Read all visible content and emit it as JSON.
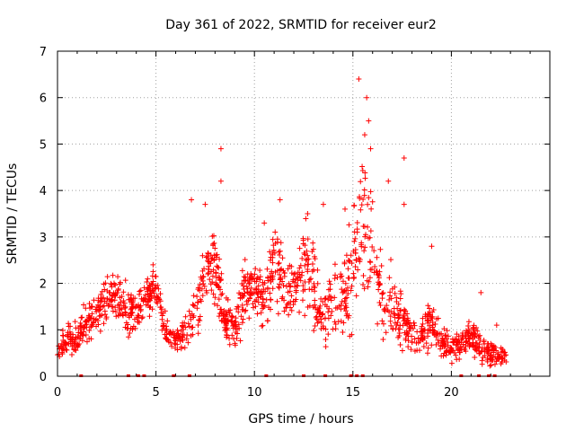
{
  "chart_data": {
    "type": "scatter",
    "title": "Day 361 of 2022, SRMTID for receiver eur2",
    "xlabel": "GPS time / hours",
    "ylabel": "SRMTID / TECUs",
    "xlim": [
      0,
      25
    ],
    "ylim": [
      0,
      7
    ],
    "xticks": [
      0,
      5,
      10,
      15,
      20
    ],
    "yticks": [
      0,
      1,
      2,
      3,
      4,
      5,
      6,
      7
    ],
    "grid": true,
    "marker": "+",
    "color": "#ff0000",
    "envelope": {
      "x": [
        0,
        0.5,
        1,
        1.5,
        2,
        2.5,
        3,
        3.5,
        4,
        4.5,
        5,
        5.5,
        6,
        6.5,
        7,
        7.5,
        8,
        8.5,
        9,
        9.5,
        10,
        10.5,
        11,
        11.5,
        12,
        12.5,
        13,
        13.5,
        14,
        14.5,
        15,
        15.5,
        16,
        16.5,
        17,
        17.5,
        18,
        18.5,
        19,
        19.5,
        20,
        20.5,
        21,
        21.5,
        22,
        22.5
      ],
      "y": [
        0.6,
        0.8,
        0.75,
        1.2,
        1.4,
        1.6,
        1.7,
        1.5,
        1.3,
        1.8,
        1.9,
        1.0,
        0.8,
        1.0,
        1.2,
        2.2,
        2.4,
        1.2,
        1.0,
        1.8,
        2.0,
        1.5,
        2.5,
        2.0,
        1.8,
        2.4,
        2.0,
        1.2,
        1.5,
        1.8,
        2.2,
        3.5,
        2.8,
        1.5,
        1.5,
        1.2,
        0.8,
        0.9,
        1.2,
        0.7,
        0.6,
        0.7,
        0.9,
        0.6,
        0.5,
        0.4
      ],
      "spread": [
        0.3,
        0.3,
        0.3,
        0.4,
        0.5,
        0.6,
        0.6,
        0.5,
        0.4,
        0.5,
        0.4,
        0.3,
        0.3,
        0.4,
        0.5,
        0.7,
        0.8,
        0.5,
        0.5,
        0.7,
        0.7,
        0.6,
        0.9,
        0.8,
        0.7,
        0.9,
        0.9,
        0.6,
        0.8,
        1.0,
        1.3,
        1.8,
        1.4,
        0.8,
        0.7,
        0.6,
        0.4,
        0.4,
        0.6,
        0.3,
        0.3,
        0.3,
        0.4,
        0.3,
        0.3,
        0.2
      ]
    },
    "peaks": [
      {
        "x": 8.3,
        "y": 4.9
      },
      {
        "x": 8.3,
        "y": 4.2
      },
      {
        "x": 15.3,
        "y": 6.4
      },
      {
        "x": 15.7,
        "y": 6.0
      },
      {
        "x": 15.8,
        "y": 5.5
      },
      {
        "x": 15.6,
        "y": 5.2
      },
      {
        "x": 15.9,
        "y": 4.9
      },
      {
        "x": 17.6,
        "y": 4.7
      },
      {
        "x": 17.6,
        "y": 3.7
      },
      {
        "x": 11.3,
        "y": 3.8
      },
      {
        "x": 12.7,
        "y": 3.5
      },
      {
        "x": 6.8,
        "y": 3.8
      },
      {
        "x": 7.5,
        "y": 3.7
      },
      {
        "x": 16.8,
        "y": 4.2
      },
      {
        "x": 13.5,
        "y": 3.7
      },
      {
        "x": 10.5,
        "y": 3.3
      },
      {
        "x": 14.6,
        "y": 3.6
      },
      {
        "x": 19.0,
        "y": 2.8
      },
      {
        "x": 21.5,
        "y": 1.8
      },
      {
        "x": 22.3,
        "y": 1.1
      }
    ],
    "zero_markers_x": [
      1.2,
      3.6,
      4.1,
      4.4,
      5.9,
      6.7,
      10.6,
      12.5,
      13.6,
      14.9,
      15.2,
      15.5,
      20.5,
      21.4,
      21.9,
      22.2
    ]
  }
}
